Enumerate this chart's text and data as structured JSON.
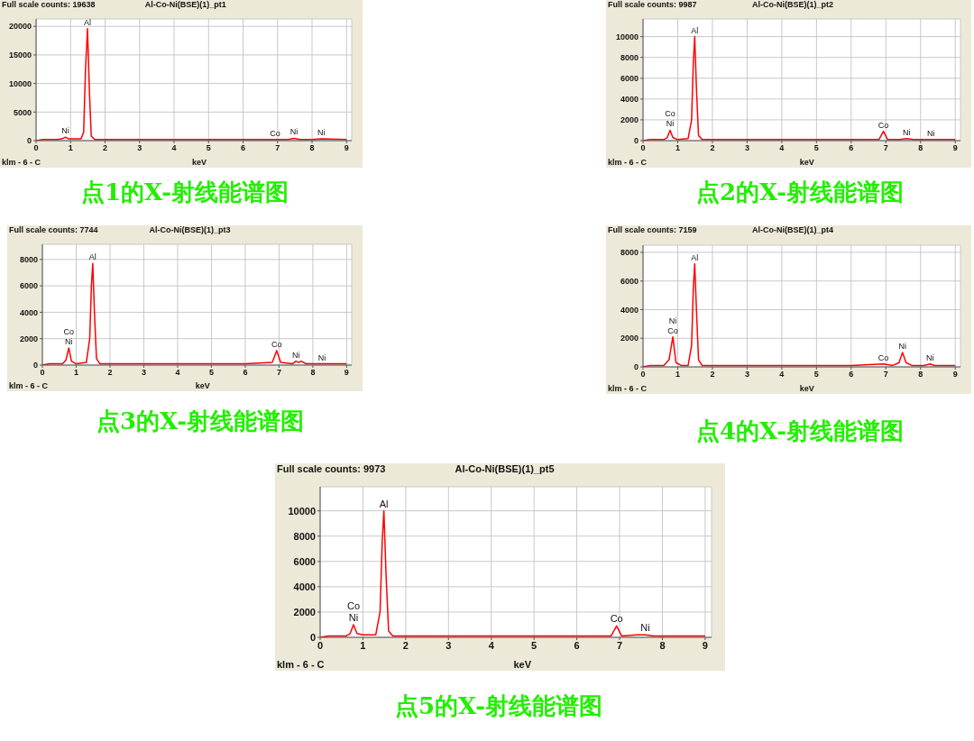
{
  "chart_data": [
    {
      "type": "line",
      "title": "Al-Co-Ni(BSE)(1)_pt1",
      "subtitle": "Full scale counts: 19638",
      "xlabel": "keV",
      "xlim": [
        0,
        9.15
      ],
      "xticks": [
        0,
        1,
        2,
        3,
        4,
        5,
        6,
        7,
        8,
        9
      ],
      "ylim": [
        0,
        21300
      ],
      "yticks": [
        0,
        5000,
        10000,
        15000,
        20000
      ],
      "grid": true,
      "series": [
        {
          "color": "#ff0000",
          "x": [
            0,
            0.2,
            0.6,
            0.75,
            0.85,
            0.95,
            1.3,
            1.38,
            1.43,
            1.49,
            1.55,
            1.6,
            1.7,
            2,
            3,
            4,
            5,
            6,
            6.93,
            7.3,
            7.48,
            7.65,
            8,
            8.27,
            9
          ],
          "values": [
            0,
            200,
            200,
            300,
            600,
            300,
            300,
            1500,
            12000,
            19600,
            8000,
            800,
            200,
            200,
            200,
            200,
            200,
            200,
            200,
            200,
            400,
            200,
            200,
            300,
            200
          ]
        }
      ],
      "annotations": [
        "klm - 6 - C",
        "点1的X-射线能谱图",
        {
          "text": "Al",
          "x": 1.49,
          "y": 19600
        },
        {
          "text": "Ni",
          "x": 0.85,
          "y": 600
        },
        {
          "text": "Co",
          "x": 6.93,
          "y": 200
        },
        {
          "text": "Ni",
          "x": 7.48,
          "y": 400
        },
        {
          "text": "Ni",
          "x": 8.27,
          "y": 300
        }
      ]
    },
    {
      "type": "line",
      "title": "Al-Co-Ni(BSE)(1)_pt2",
      "subtitle": "Full scale counts: 9987",
      "xlabel": "keV",
      "xlim": [
        0,
        9.15
      ],
      "xticks": [
        0,
        1,
        2,
        3,
        4,
        5,
        6,
        7,
        8,
        9
      ],
      "ylim": [
        0,
        11700
      ],
      "yticks": [
        0,
        2000,
        4000,
        6000,
        8000,
        10000
      ],
      "grid": true,
      "series": [
        {
          "color": "#ff0000",
          "x": [
            0,
            0.2,
            0.6,
            0.7,
            0.78,
            0.86,
            1.0,
            1.3,
            1.4,
            1.45,
            1.49,
            1.54,
            1.6,
            1.7,
            2,
            3,
            4,
            5,
            6,
            6.8,
            6.93,
            7.05,
            7.4,
            7.6,
            7.8,
            8.2,
            8.3,
            8.5,
            9
          ],
          "values": [
            0,
            100,
            100,
            300,
            1000,
            300,
            100,
            200,
            2000,
            7500,
            10000,
            5000,
            500,
            100,
            100,
            100,
            100,
            100,
            100,
            100,
            900,
            100,
            100,
            200,
            100,
            100,
            100,
            100,
            100
          ]
        }
      ],
      "annotations": [
        "klm - 6 - C",
        "点2的X-射线能谱图",
        {
          "text": "Al",
          "x": 1.49,
          "y": 10000
        },
        {
          "text": "Co",
          "x": 0.78,
          "y": 1000
        },
        {
          "text": "Ni",
          "x": 0.78,
          "y": 1000
        },
        {
          "text": "Co",
          "x": 6.93,
          "y": 900
        },
        {
          "text": "Ni",
          "x": 7.6,
          "y": 200
        },
        {
          "text": "Ni",
          "x": 8.3,
          "y": 100
        }
      ]
    },
    {
      "type": "line",
      "title": "Al-Co-Ni(BSE)(1)_pt3",
      "subtitle": "Full scale counts: 7744",
      "xlabel": "keV",
      "xlim": [
        0,
        9.15
      ],
      "xticks": [
        0,
        1,
        2,
        3,
        4,
        5,
        6,
        7,
        8,
        9
      ],
      "ylim": [
        0,
        9150
      ],
      "yticks": [
        0,
        2000,
        4000,
        6000,
        8000
      ],
      "grid": true,
      "series": [
        {
          "color": "#ff0000",
          "x": [
            0,
            0.2,
            0.6,
            0.7,
            0.78,
            0.86,
            1.0,
            1.3,
            1.4,
            1.45,
            1.49,
            1.54,
            1.6,
            1.7,
            2,
            3,
            4,
            5,
            6,
            6.8,
            6.93,
            7.05,
            7.4,
            7.5,
            7.58,
            7.65,
            7.8,
            8.27,
            9
          ],
          "values": [
            0,
            100,
            100,
            400,
            1300,
            300,
            100,
            200,
            2000,
            6000,
            7700,
            4000,
            500,
            100,
            100,
            100,
            100,
            100,
            100,
            200,
            1100,
            200,
            100,
            300,
            200,
            300,
            100,
            100,
            100
          ]
        }
      ],
      "annotations": [
        "klm - 6 - C",
        "点3的X-射线能谱图",
        {
          "text": "Al",
          "x": 1.49,
          "y": 7700
        },
        {
          "text": "Co",
          "x": 0.78,
          "y": 1300
        },
        {
          "text": "Ni",
          "x": 0.78,
          "y": 1300
        },
        {
          "text": "Co",
          "x": 6.93,
          "y": 1100
        },
        {
          "text": "Ni",
          "x": 7.5,
          "y": 300
        },
        {
          "text": "Ni",
          "x": 8.27,
          "y": 100
        }
      ]
    },
    {
      "type": "line",
      "title": "Al-Co-Ni(BSE)(1)_pt4",
      "subtitle": "Full scale counts: 7159",
      "xlabel": "keV",
      "xlim": [
        0,
        9.15
      ],
      "xticks": [
        0,
        1,
        2,
        3,
        4,
        5,
        6,
        7,
        8,
        9
      ],
      "ylim": [
        0,
        8500
      ],
      "yticks": [
        0,
        2000,
        4000,
        6000,
        8000
      ],
      "grid": true,
      "series": [
        {
          "color": "#ff0000",
          "x": [
            0,
            0.2,
            0.6,
            0.75,
            0.86,
            0.95,
            1.1,
            1.3,
            1.4,
            1.45,
            1.49,
            1.54,
            1.6,
            1.7,
            2,
            3,
            4,
            5,
            6,
            6.93,
            7.2,
            7.38,
            7.48,
            7.58,
            7.75,
            8.1,
            8.27,
            8.4,
            9
          ],
          "values": [
            0,
            100,
            100,
            500,
            2100,
            300,
            100,
            100,
            1500,
            5500,
            7200,
            4000,
            500,
            100,
            100,
            100,
            100,
            100,
            100,
            200,
            100,
            300,
            1000,
            300,
            100,
            100,
            200,
            100,
            100
          ]
        }
      ],
      "annotations": [
        "klm - 6 - C",
        "点4的X-射线能谱图",
        {
          "text": "Al",
          "x": 1.49,
          "y": 7200
        },
        {
          "text": "Ni",
          "x": 0.86,
          "y": 2100
        },
        {
          "text": "Co",
          "x": 0.86,
          "y": 2100
        },
        {
          "text": "Co",
          "x": 6.93,
          "y": 200
        },
        {
          "text": "Ni",
          "x": 7.48,
          "y": 1000
        },
        {
          "text": "Ni",
          "x": 8.27,
          "y": 200
        }
      ]
    },
    {
      "type": "line",
      "title": "Al-Co-Ni(BSE)(1)_pt5",
      "subtitle": "Full scale counts: 9973",
      "xlabel": "keV",
      "xlim": [
        0,
        9.15
      ],
      "xticks": [
        0,
        1,
        2,
        3,
        4,
        5,
        6,
        7,
        8,
        9
      ],
      "ylim": [
        0,
        11900
      ],
      "yticks": [
        0,
        2000,
        4000,
        6000,
        8000,
        10000
      ],
      "grid": true,
      "series": [
        {
          "color": "#ff0000",
          "x": [
            0,
            0.2,
            0.6,
            0.7,
            0.78,
            0.86,
            1.0,
            1.3,
            1.4,
            1.45,
            1.49,
            1.54,
            1.6,
            1.7,
            2,
            3,
            4,
            5,
            6,
            6.8,
            6.93,
            7.05,
            7.4,
            7.6,
            7.8,
            8.2,
            8.5,
            9
          ],
          "values": [
            0,
            100,
            100,
            300,
            1000,
            300,
            200,
            200,
            2000,
            7500,
            10000,
            5000,
            500,
            100,
            100,
            100,
            100,
            100,
            100,
            100,
            900,
            100,
            200,
            200,
            100,
            100,
            100,
            100
          ]
        }
      ],
      "annotations": [
        "klm - 6 - C",
        "点5的X-射线能谱图",
        {
          "text": "Al",
          "x": 1.49,
          "y": 10000
        },
        {
          "text": "Co",
          "x": 0.78,
          "y": 1000
        },
        {
          "text": "Ni",
          "x": 0.78,
          "y": 1000
        },
        {
          "text": "Co",
          "x": 6.93,
          "y": 900
        },
        {
          "text": "Ni",
          "x": 7.6,
          "y": 200
        }
      ]
    }
  ]
}
